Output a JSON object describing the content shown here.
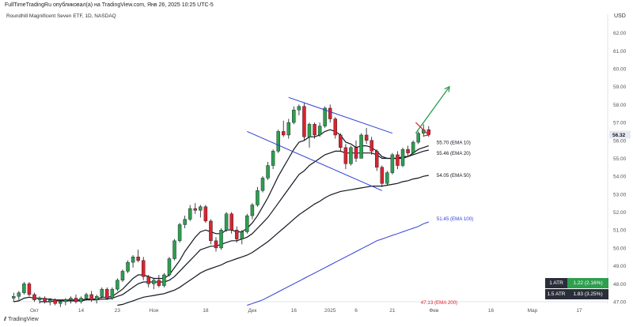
{
  "header": {
    "title": "FullTimeTradingRu опубликовал(а) на TradingView.com, Янв 26, 2025 10:25 UTC-5",
    "symbol": "Roundhill Magnificent Seven ETF, 1D, NASDAQ",
    "currency": "USD",
    "logo_text": "TradingView"
  },
  "atr_panel": [
    {
      "label": "1 ATR",
      "value": "1.22 (2.16%)",
      "color": "#2e9e4f"
    },
    {
      "label": "1.5 ATR",
      "value": "1.83 (3.25%)",
      "color": "#2a2e39"
    }
  ],
  "chart_data": {
    "type": "candlestick",
    "title": "Roundhill Magnificent Seven ETF, 1D, NASDAQ",
    "ylim": [
      47.0,
      62.6
    ],
    "y_ticks": [
      "62.00",
      "61.00",
      "60.00",
      "59.00",
      "58.00",
      "57.00",
      "56.00",
      "55.00",
      "54.00",
      "53.00",
      "52.00",
      "51.00",
      "50.00",
      "49.00",
      "48.00",
      "47.00"
    ],
    "x_ticks": [
      {
        "i": 4,
        "label": "Окт"
      },
      {
        "i": 13,
        "label": "14"
      },
      {
        "i": 20,
        "label": "23"
      },
      {
        "i": 27,
        "label": "Ноя"
      },
      {
        "i": 37,
        "label": "18"
      },
      {
        "i": 46,
        "label": "Дек"
      },
      {
        "i": 54,
        "label": "16"
      },
      {
        "i": 61,
        "label": "2025"
      },
      {
        "i": 66,
        "label": "6"
      },
      {
        "i": 73,
        "label": "21"
      },
      {
        "i": 81,
        "label": "Фев"
      },
      {
        "i": 92,
        "label": "16"
      },
      {
        "i": 100,
        "label": "Мар"
      },
      {
        "i": 109,
        "label": "17"
      }
    ],
    "x_count": 115,
    "bullish_color": "#2e9e4f",
    "bearish_color": "#d9232e",
    "candles": [
      {
        "o": 47.2,
        "h": 47.5,
        "l": 47.0,
        "c": 47.3
      },
      {
        "o": 47.3,
        "h": 47.6,
        "l": 47.1,
        "c": 47.5
      },
      {
        "o": 47.5,
        "h": 48.1,
        "l": 47.4,
        "c": 48.0
      },
      {
        "o": 48.0,
        "h": 48.1,
        "l": 47.3,
        "c": 47.4
      },
      {
        "o": 47.4,
        "h": 47.5,
        "l": 47.0,
        "c": 47.1
      },
      {
        "o": 47.1,
        "h": 47.3,
        "l": 46.9,
        "c": 47.2
      },
      {
        "o": 47.2,
        "h": 47.3,
        "l": 46.9,
        "c": 47.0
      },
      {
        "o": 47.0,
        "h": 47.2,
        "l": 46.8,
        "c": 47.1
      },
      {
        "o": 47.1,
        "h": 47.2,
        "l": 46.8,
        "c": 46.9
      },
      {
        "o": 46.9,
        "h": 47.1,
        "l": 46.7,
        "c": 47.0
      },
      {
        "o": 47.0,
        "h": 47.2,
        "l": 46.8,
        "c": 47.1
      },
      {
        "o": 47.1,
        "h": 47.3,
        "l": 46.9,
        "c": 47.2
      },
      {
        "o": 47.2,
        "h": 47.4,
        "l": 46.9,
        "c": 47.0
      },
      {
        "o": 47.0,
        "h": 47.3,
        "l": 46.9,
        "c": 47.2
      },
      {
        "o": 47.2,
        "h": 47.5,
        "l": 47.1,
        "c": 47.4
      },
      {
        "o": 47.4,
        "h": 47.6,
        "l": 47.0,
        "c": 47.1
      },
      {
        "o": 47.1,
        "h": 47.4,
        "l": 46.9,
        "c": 47.3
      },
      {
        "o": 47.3,
        "h": 47.8,
        "l": 47.2,
        "c": 47.7
      },
      {
        "o": 47.7,
        "h": 47.8,
        "l": 47.1,
        "c": 47.2
      },
      {
        "o": 47.2,
        "h": 47.8,
        "l": 47.1,
        "c": 47.7
      },
      {
        "o": 47.7,
        "h": 48.3,
        "l": 47.6,
        "c": 48.2
      },
      {
        "o": 48.2,
        "h": 48.8,
        "l": 48.1,
        "c": 48.7
      },
      {
        "o": 48.7,
        "h": 49.3,
        "l": 48.6,
        "c": 49.2
      },
      {
        "o": 49.2,
        "h": 49.6,
        "l": 48.9,
        "c": 49.5
      },
      {
        "o": 49.5,
        "h": 49.9,
        "l": 49.2,
        "c": 49.3
      },
      {
        "o": 49.3,
        "h": 49.5,
        "l": 48.2,
        "c": 48.4
      },
      {
        "o": 48.4,
        "h": 48.5,
        "l": 47.8,
        "c": 48.0
      },
      {
        "o": 48.0,
        "h": 48.3,
        "l": 47.7,
        "c": 48.2
      },
      {
        "o": 48.2,
        "h": 48.5,
        "l": 47.8,
        "c": 47.9
      },
      {
        "o": 47.9,
        "h": 48.6,
        "l": 47.8,
        "c": 48.5
      },
      {
        "o": 48.5,
        "h": 49.5,
        "l": 48.4,
        "c": 49.4
      },
      {
        "o": 49.4,
        "h": 50.5,
        "l": 49.3,
        "c": 50.4
      },
      {
        "o": 50.4,
        "h": 51.4,
        "l": 50.3,
        "c": 51.3
      },
      {
        "o": 51.3,
        "h": 51.8,
        "l": 51.1,
        "c": 51.6
      },
      {
        "o": 51.6,
        "h": 52.4,
        "l": 51.5,
        "c": 52.2
      },
      {
        "o": 52.2,
        "h": 52.5,
        "l": 51.9,
        "c": 52.1
      },
      {
        "o": 52.1,
        "h": 52.4,
        "l": 51.7,
        "c": 52.3
      },
      {
        "o": 52.3,
        "h": 52.4,
        "l": 51.4,
        "c": 51.5
      },
      {
        "o": 51.5,
        "h": 51.6,
        "l": 50.2,
        "c": 50.4
      },
      {
        "o": 50.4,
        "h": 50.6,
        "l": 49.8,
        "c": 50.0
      },
      {
        "o": 50.0,
        "h": 51.1,
        "l": 49.9,
        "c": 51.0
      },
      {
        "o": 51.0,
        "h": 52.0,
        "l": 50.9,
        "c": 51.9
      },
      {
        "o": 51.9,
        "h": 52.0,
        "l": 50.8,
        "c": 51.0
      },
      {
        "o": 51.0,
        "h": 51.2,
        "l": 50.3,
        "c": 50.5
      },
      {
        "o": 50.5,
        "h": 51.0,
        "l": 50.2,
        "c": 50.9
      },
      {
        "o": 50.9,
        "h": 51.9,
        "l": 50.8,
        "c": 51.8
      },
      {
        "o": 51.8,
        "h": 52.5,
        "l": 51.6,
        "c": 52.4
      },
      {
        "o": 52.4,
        "h": 53.4,
        "l": 52.3,
        "c": 53.2
      },
      {
        "o": 53.2,
        "h": 54.0,
        "l": 53.1,
        "c": 53.9
      },
      {
        "o": 53.9,
        "h": 54.8,
        "l": 53.8,
        "c": 54.6
      },
      {
        "o": 54.6,
        "h": 55.5,
        "l": 54.4,
        "c": 55.4
      },
      {
        "o": 55.4,
        "h": 56.6,
        "l": 55.3,
        "c": 56.5
      },
      {
        "o": 56.5,
        "h": 57.1,
        "l": 56.2,
        "c": 56.3
      },
      {
        "o": 56.3,
        "h": 57.2,
        "l": 56.1,
        "c": 57.0
      },
      {
        "o": 57.0,
        "h": 57.9,
        "l": 56.9,
        "c": 57.7
      },
      {
        "o": 57.7,
        "h": 58.0,
        "l": 57.4,
        "c": 57.9
      },
      {
        "o": 57.9,
        "h": 58.1,
        "l": 56.0,
        "c": 56.2
      },
      {
        "o": 56.2,
        "h": 57.0,
        "l": 55.6,
        "c": 56.9
      },
      {
        "o": 56.9,
        "h": 57.0,
        "l": 56.1,
        "c": 56.3
      },
      {
        "o": 56.3,
        "h": 57.0,
        "l": 56.2,
        "c": 56.8
      },
      {
        "o": 56.8,
        "h": 57.9,
        "l": 56.7,
        "c": 57.8
      },
      {
        "o": 57.8,
        "h": 58.0,
        "l": 57.0,
        "c": 57.2
      },
      {
        "o": 57.2,
        "h": 57.3,
        "l": 56.1,
        "c": 56.3
      },
      {
        "o": 56.3,
        "h": 56.4,
        "l": 55.4,
        "c": 55.6
      },
      {
        "o": 55.6,
        "h": 55.8,
        "l": 54.4,
        "c": 54.7
      },
      {
        "o": 54.7,
        "h": 55.7,
        "l": 54.6,
        "c": 55.6
      },
      {
        "o": 55.6,
        "h": 56.0,
        "l": 54.8,
        "c": 55.0
      },
      {
        "o": 55.0,
        "h": 56.4,
        "l": 55.0,
        "c": 56.3
      },
      {
        "o": 56.3,
        "h": 56.7,
        "l": 55.8,
        "c": 56.0
      },
      {
        "o": 56.0,
        "h": 56.2,
        "l": 55.2,
        "c": 55.4
      },
      {
        "o": 55.4,
        "h": 55.5,
        "l": 54.3,
        "c": 54.5
      },
      {
        "o": 54.5,
        "h": 54.6,
        "l": 53.4,
        "c": 53.6
      },
      {
        "o": 53.6,
        "h": 54.3,
        "l": 53.5,
        "c": 54.2
      },
      {
        "o": 54.2,
        "h": 55.3,
        "l": 54.1,
        "c": 55.2
      },
      {
        "o": 55.2,
        "h": 55.4,
        "l": 54.4,
        "c": 54.6
      },
      {
        "o": 54.6,
        "h": 55.6,
        "l": 54.5,
        "c": 55.5
      },
      {
        "o": 55.5,
        "h": 55.7,
        "l": 55.1,
        "c": 55.3
      },
      {
        "o": 55.3,
        "h": 56.0,
        "l": 55.2,
        "c": 55.9
      },
      {
        "o": 55.9,
        "h": 56.5,
        "l": 55.8,
        "c": 56.4
      },
      {
        "o": 56.4,
        "h": 56.9,
        "l": 56.2,
        "c": 56.6
      },
      {
        "o": 56.6,
        "h": 56.8,
        "l": 56.2,
        "c": 56.32
      }
    ],
    "emas": [
      {
        "name": "55.70 (EMA 10)",
        "value": 55.7,
        "color": "#131722",
        "width": 1.2,
        "values": [
          47.0,
          47.05,
          47.2,
          47.25,
          47.2,
          47.2,
          47.15,
          47.15,
          47.1,
          47.1,
          47.1,
          47.1,
          47.1,
          47.1,
          47.15,
          47.15,
          47.15,
          47.25,
          47.25,
          47.3,
          47.5,
          47.7,
          48.0,
          48.3,
          48.5,
          48.5,
          48.4,
          48.3,
          48.3,
          48.3,
          48.5,
          48.9,
          49.3,
          49.8,
          50.2,
          50.6,
          50.9,
          51.0,
          50.9,
          50.8,
          50.8,
          51.0,
          51.0,
          50.9,
          50.9,
          51.1,
          51.4,
          51.8,
          52.3,
          52.8,
          53.4,
          54.0,
          54.5,
          55.0,
          55.5,
          55.9,
          56.0,
          56.2,
          56.2,
          56.3,
          56.5,
          56.6,
          56.5,
          56.3,
          55.9,
          55.8,
          55.6,
          55.7,
          55.7,
          55.6,
          55.4,
          55.1,
          55.0,
          55.0,
          55.0,
          55.1,
          55.1,
          55.3,
          55.5,
          55.6,
          55.7
        ]
      },
      {
        "name": "55.46 (EMA 20)",
        "value": 55.46,
        "color": "#131722",
        "width": 1.2,
        "values": [
          null,
          null,
          null,
          null,
          null,
          47.0,
          47.0,
          47.0,
          47.05,
          47.05,
          47.05,
          47.05,
          47.05,
          47.05,
          47.1,
          47.1,
          47.1,
          47.15,
          47.15,
          47.2,
          47.3,
          47.4,
          47.6,
          47.8,
          48.0,
          48.1,
          48.1,
          48.1,
          48.1,
          48.1,
          48.2,
          48.4,
          48.7,
          49.0,
          49.3,
          49.6,
          49.9,
          50.0,
          50.1,
          50.1,
          50.2,
          50.3,
          50.4,
          50.4,
          50.5,
          50.6,
          50.8,
          51.1,
          51.4,
          51.7,
          52.1,
          52.5,
          52.9,
          53.3,
          53.7,
          54.1,
          54.3,
          54.6,
          54.8,
          55.0,
          55.2,
          55.3,
          55.4,
          55.4,
          55.3,
          55.3,
          55.3,
          55.3,
          55.3,
          55.3,
          55.2,
          55.0,
          55.0,
          55.0,
          55.0,
          55.0,
          55.1,
          55.2,
          55.3,
          55.4,
          55.46
        ]
      },
      {
        "name": "54.05 (EMA 50)",
        "value": 54.05,
        "color": "#131722",
        "width": 1.2,
        "values": [
          null,
          null,
          null,
          null,
          null,
          null,
          null,
          null,
          null,
          null,
          null,
          null,
          null,
          null,
          null,
          null,
          null,
          null,
          null,
          null,
          46.8,
          46.85,
          46.95,
          47.05,
          47.15,
          47.25,
          47.3,
          47.35,
          47.4,
          47.45,
          47.55,
          47.65,
          47.8,
          48.0,
          48.2,
          48.4,
          48.6,
          48.75,
          48.85,
          48.95,
          49.05,
          49.2,
          49.3,
          49.4,
          49.5,
          49.6,
          49.75,
          49.95,
          50.15,
          50.35,
          50.6,
          50.85,
          51.1,
          51.35,
          51.6,
          51.85,
          52.05,
          52.25,
          52.45,
          52.6,
          52.8,
          52.95,
          53.05,
          53.15,
          53.2,
          53.25,
          53.3,
          53.35,
          53.4,
          53.45,
          53.45,
          53.45,
          53.5,
          53.55,
          53.6,
          53.7,
          53.75,
          53.85,
          53.9,
          54.0,
          54.05
        ]
      },
      {
        "name": "51.45 (EMA 100)",
        "value": 51.45,
        "color": "#2f3fd6",
        "width": 1,
        "values": [
          null,
          null,
          null,
          null,
          null,
          null,
          null,
          null,
          null,
          null,
          null,
          null,
          null,
          null,
          null,
          null,
          null,
          null,
          null,
          null,
          null,
          null,
          null,
          null,
          null,
          null,
          null,
          null,
          null,
          null,
          null,
          null,
          null,
          null,
          null,
          null,
          null,
          null,
          null,
          null,
          null,
          null,
          null,
          null,
          null,
          46.8,
          46.9,
          47.0,
          47.1,
          47.25,
          47.4,
          47.55,
          47.7,
          47.85,
          48.0,
          48.15,
          48.3,
          48.45,
          48.6,
          48.75,
          48.9,
          49.05,
          49.2,
          49.35,
          49.5,
          49.65,
          49.8,
          49.95,
          50.1,
          50.25,
          50.4,
          50.5,
          50.6,
          50.7,
          50.8,
          50.9,
          51.0,
          51.1,
          51.2,
          51.35,
          51.45
        ]
      },
      {
        "name": "47.13 (EMA 200)",
        "value": 47.13,
        "color": "#d9232e",
        "width": 1,
        "values": []
      }
    ],
    "channel": {
      "upper": [
        [
          58.4,
          53
        ],
        [
          56.4,
          73
        ]
      ],
      "lower": [
        [
          56.5,
          45
        ],
        [
          53.2,
          71
        ]
      ]
    },
    "current_price": "56.32",
    "projection": {
      "from": [
        56.4,
        77.5
      ],
      "to": [
        59.0,
        84
      ]
    },
    "dip_marker": {
      "from": [
        57.0,
        77.5
      ],
      "via": [
        56.3,
        80
      ]
    }
  }
}
